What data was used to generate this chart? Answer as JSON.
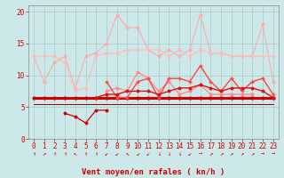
{
  "x": [
    0,
    1,
    2,
    3,
    4,
    5,
    6,
    7,
    8,
    9,
    10,
    11,
    12,
    13,
    14,
    15,
    16,
    17,
    18,
    19,
    20,
    21,
    22,
    23
  ],
  "series": [
    {
      "name": "rafales_light_top",
      "y": [
        13.0,
        9.0,
        12.0,
        13.0,
        8.0,
        13.0,
        13.5,
        15.0,
        19.5,
        17.5,
        17.5,
        14.0,
        13.0,
        14.0,
        13.0,
        14.0,
        19.5,
        13.5,
        13.5,
        13.0,
        13.0,
        13.0,
        18.0,
        9.0
      ],
      "color": "#ffaaaa",
      "linewidth": 0.8,
      "marker": "o",
      "markersize": 1.8,
      "linestyle": "-"
    },
    {
      "name": "rafales_light_mid",
      "y": [
        13.0,
        13.0,
        13.0,
        12.0,
        7.5,
        8.0,
        13.0,
        13.5,
        13.5,
        14.0,
        14.0,
        14.0,
        14.0,
        13.0,
        14.0,
        13.0,
        14.0,
        13.5,
        13.5,
        13.0,
        13.0,
        13.0,
        13.0,
        13.0
      ],
      "color": "#ffbbbb",
      "linewidth": 0.8,
      "marker": "o",
      "markersize": 1.8,
      "linestyle": "-"
    },
    {
      "name": "rafales_med",
      "y": [
        null,
        null,
        null,
        null,
        null,
        null,
        null,
        7.5,
        8.0,
        7.5,
        10.5,
        9.5,
        7.5,
        9.0,
        7.0,
        7.5,
        8.5,
        7.0,
        7.0,
        7.0,
        7.0,
        7.0,
        null,
        null
      ],
      "color": "#ff8888",
      "linewidth": 0.9,
      "marker": "o",
      "markersize": 1.8,
      "linestyle": "-"
    },
    {
      "name": "flat_bold",
      "y": [
        6.5,
        6.5,
        6.5,
        6.5,
        6.5,
        6.5,
        6.5,
        6.5,
        6.5,
        6.5,
        6.5,
        6.5,
        6.5,
        6.5,
        6.5,
        6.5,
        6.5,
        6.5,
        6.5,
        6.5,
        6.5,
        6.5,
        6.5,
        6.5
      ],
      "color": "#cc0000",
      "linewidth": 2.2,
      "marker": "o",
      "markersize": 2.0,
      "linestyle": "-"
    },
    {
      "name": "low_triangle",
      "y": [
        null,
        null,
        null,
        4.0,
        3.5,
        2.5,
        4.5,
        4.5,
        null,
        null,
        null,
        null,
        null,
        null,
        null,
        null,
        null,
        null,
        null,
        null,
        null,
        null,
        null,
        null
      ],
      "color": "#cc0000",
      "linewidth": 0.9,
      "marker": "o",
      "markersize": 1.8,
      "linestyle": "-"
    },
    {
      "name": "rising_cross",
      "y": [
        null,
        null,
        null,
        null,
        null,
        null,
        null,
        9.0,
        6.5,
        6.5,
        9.0,
        9.5,
        6.5,
        9.5,
        9.5,
        9.0,
        11.5,
        9.0,
        7.5,
        9.5,
        7.5,
        9.0,
        9.5,
        7.0
      ],
      "color": "#ff4444",
      "linewidth": 1.0,
      "marker": "+",
      "markersize": 3.5,
      "linestyle": "-"
    },
    {
      "name": "rising_dot",
      "y": [
        null,
        null,
        null,
        null,
        null,
        null,
        6.5,
        7.0,
        7.0,
        7.5,
        7.5,
        7.5,
        7.0,
        7.5,
        8.0,
        8.0,
        8.5,
        8.0,
        7.5,
        8.0,
        8.0,
        8.0,
        7.5,
        6.5
      ],
      "color": "#dd1111",
      "linewidth": 1.0,
      "marker": "o",
      "markersize": 1.8,
      "linestyle": "-"
    },
    {
      "name": "baseline_thin",
      "y": [
        5.5,
        5.5,
        5.5,
        5.5,
        5.5,
        5.5,
        5.5,
        5.5,
        5.5,
        5.5,
        5.5,
        5.5,
        5.5,
        5.5,
        5.5,
        5.5,
        5.5,
        5.5,
        5.5,
        5.5,
        5.5,
        5.5,
        5.5,
        5.5
      ],
      "color": "#990000",
      "linewidth": 0.7,
      "marker": null,
      "markersize": 0,
      "linestyle": "-"
    }
  ],
  "arrows": [
    "↑",
    "↗",
    "↑",
    "↑",
    "↖",
    "↑",
    "↑",
    "↙",
    "↙",
    "↖",
    "↙",
    "↙",
    "↓",
    "↓",
    "↓",
    "↙",
    "→",
    "↗",
    "↗",
    "↗",
    "↗",
    "↗",
    "→",
    "→"
  ],
  "xlabel": "Vent moyen/en rafales ( kn/h )",
  "ylim": [
    0,
    21
  ],
  "xlim": [
    -0.5,
    23.5
  ],
  "yticks": [
    0,
    5,
    10,
    15,
    20
  ],
  "xticks": [
    0,
    1,
    2,
    3,
    4,
    5,
    6,
    7,
    8,
    9,
    10,
    11,
    12,
    13,
    14,
    15,
    16,
    17,
    18,
    19,
    20,
    21,
    22,
    23
  ],
  "background_color": "#cce8e8",
  "grid_color": "#aacccc",
  "tick_color": "#cc0000",
  "xlabel_fontsize": 6.5,
  "tick_fontsize": 5.5
}
